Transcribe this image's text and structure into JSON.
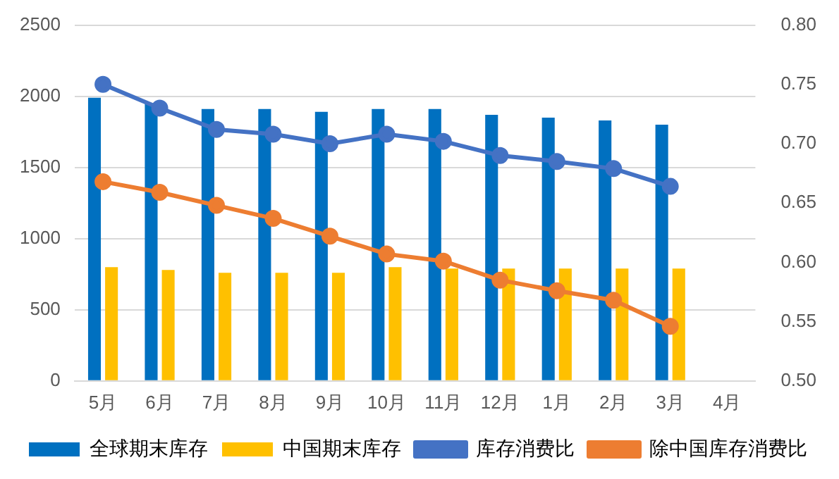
{
  "chart_data": {
    "type": "bar",
    "categories": [
      "5月",
      "6月",
      "7月",
      "8月",
      "9月",
      "10月",
      "11月",
      "12月",
      "1月",
      "2月",
      "3月",
      "4月"
    ],
    "series": [
      {
        "name": "全球期末库存",
        "color": "#0070c0",
        "values": [
          1990,
          1950,
          1910,
          1910,
          1890,
          1910,
          1910,
          1870,
          1850,
          1830,
          1800,
          null
        ]
      },
      {
        "name": "中国期末库存",
        "color": "#ffc000",
        "values": [
          800,
          780,
          760,
          760,
          760,
          800,
          790,
          790,
          790,
          790,
          790,
          null
        ]
      },
      {
        "name": "库存消费比",
        "type": "line",
        "axis": "y2",
        "color": "#4472c4",
        "values": [
          0.75,
          0.73,
          0.712,
          0.708,
          0.7,
          0.708,
          0.702,
          0.69,
          0.685,
          0.679,
          0.664,
          null
        ]
      },
      {
        "name": "除中国库存消费比",
        "type": "line",
        "axis": "y2",
        "color": "#ed7d31",
        "values": [
          0.668,
          0.659,
          0.648,
          0.637,
          0.622,
          0.607,
          0.601,
          0.585,
          0.576,
          0.568,
          0.546,
          null
        ]
      }
    ],
    "ylim": [
      0,
      2500
    ],
    "yticks": [
      0,
      500,
      1000,
      1500,
      2000,
      2500
    ],
    "y2lim": [
      0.5,
      0.8
    ],
    "y2ticks": [
      {
        "value": 0.5,
        "label": "0.50"
      },
      {
        "value": 0.55,
        "label": "0.55"
      },
      {
        "value": 0.6,
        "label": "0.60"
      },
      {
        "value": 0.65,
        "label": "0.65"
      },
      {
        "value": 0.7,
        "label": "0.70"
      },
      {
        "value": 0.75,
        "label": "0.75"
      },
      {
        "value": 0.8,
        "label": "0.80"
      }
    ],
    "grid": "y",
    "legend": "bottom",
    "marker": "circle",
    "line_style": "solid"
  }
}
